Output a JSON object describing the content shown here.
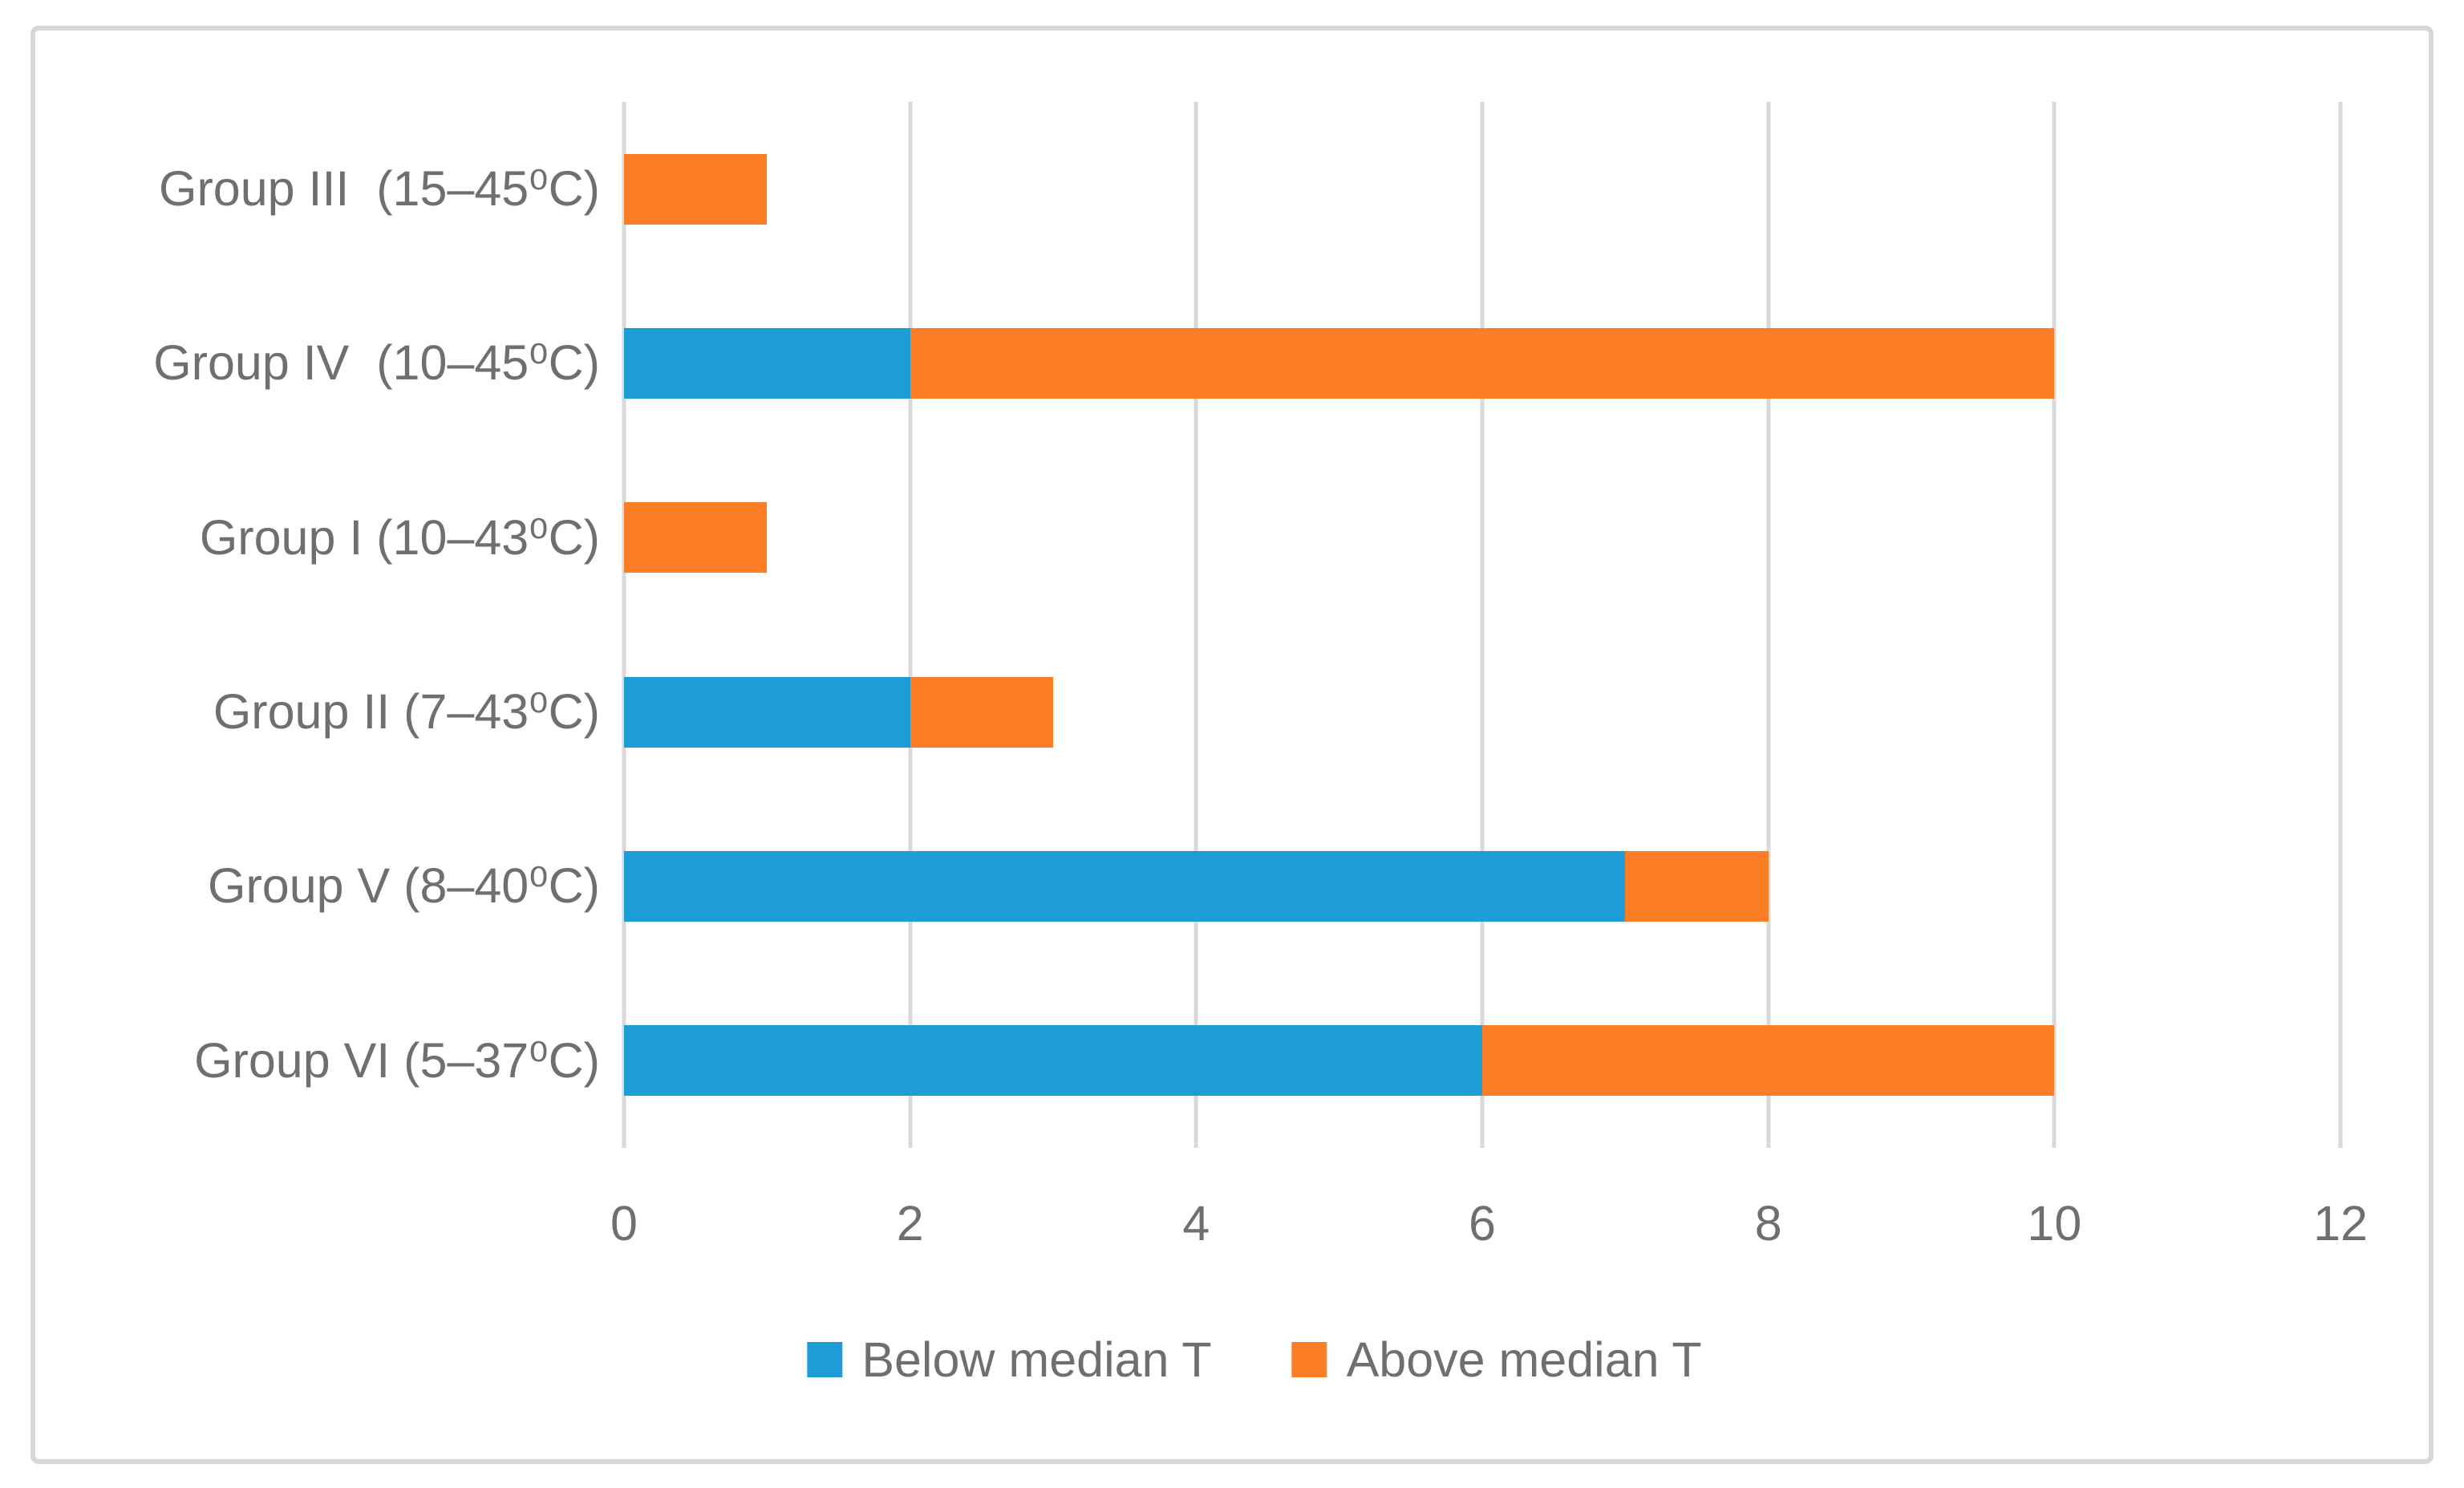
{
  "chart_data": {
    "type": "bar",
    "orientation": "horizontal",
    "stacked": true,
    "title": "",
    "xlabel": "",
    "ylabel": "",
    "categories": [
      "Group III  (15–45⁰C)",
      "Group IV  (10–45⁰C)",
      "Group I (10–43⁰C)",
      "Group II (7–43⁰C)",
      "Group V (8–40⁰C)",
      "Group VI (5–37⁰C)"
    ],
    "series": [
      {
        "name": "Below median T",
        "color": "#1e9cd7",
        "values": [
          0,
          2,
          0,
          2,
          7,
          6
        ]
      },
      {
        "name": "Above median T",
        "color": "#fb7d26",
        "values": [
          1,
          8,
          1,
          1,
          1,
          4
        ]
      }
    ],
    "xlim": [
      0,
      12
    ],
    "xticks": [
      0,
      2,
      4,
      6,
      8,
      10,
      12
    ],
    "grid": true,
    "legend_position": "bottom"
  },
  "style": {
    "gridline_color": "#d9d9d9",
    "axis_color": "#d9d9d9",
    "text_color": "#6f6f6f",
    "frame_border_color": "#d7d7d7",
    "background_color": "#ffffff"
  }
}
